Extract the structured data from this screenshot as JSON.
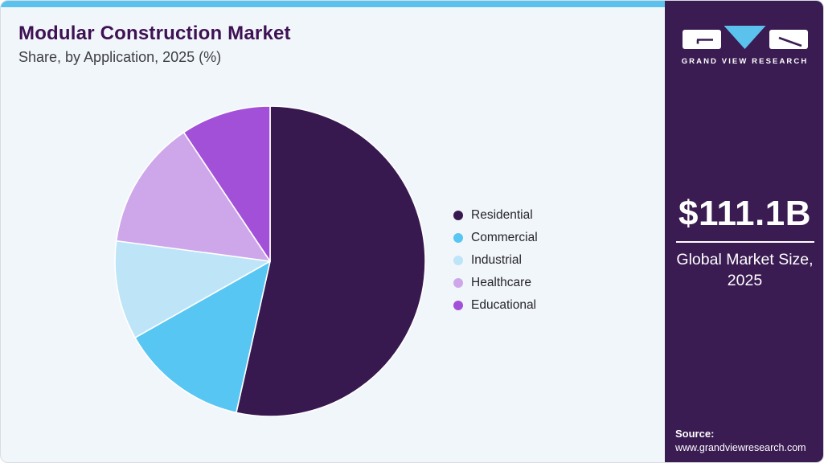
{
  "header": {
    "title": "Modular Construction Market",
    "subtitle": "Share, by Application, 2025 (%)"
  },
  "chart_data": {
    "type": "pie",
    "title": "Modular Construction Market Share, by Application, 2025 (%)",
    "unit": "%",
    "direction": "clockwise",
    "start_angle": "12 o'clock",
    "legend_position": "right",
    "data_labels_shown": false,
    "series": [
      {
        "name": "Residential",
        "value": 53.5,
        "color": "#38194F"
      },
      {
        "name": "Commercial",
        "value": 13.3,
        "color": "#57C6F2"
      },
      {
        "name": "Industrial",
        "value": 10.3,
        "color": "#BDE5F7"
      },
      {
        "name": "Healthcare",
        "value": 13.5,
        "color": "#CEA7EA"
      },
      {
        "name": "Educational",
        "value": 9.4,
        "color": "#A350D9"
      }
    ]
  },
  "sidebar": {
    "logo_wordmark": "GRAND VIEW RESEARCH",
    "market_size": "$111.1B",
    "caption_lines": [
      "Global Market Size,",
      "2025"
    ],
    "source_label": "Source:",
    "source_url": "www.grandviewresearch.com"
  },
  "theme": {
    "card_background": "#F1F6FA",
    "top_strip": "#5BC2EE",
    "sidebar_background": "#3A1B52",
    "title_color": "#3E1154",
    "pie_border": "#FFFFFF"
  }
}
